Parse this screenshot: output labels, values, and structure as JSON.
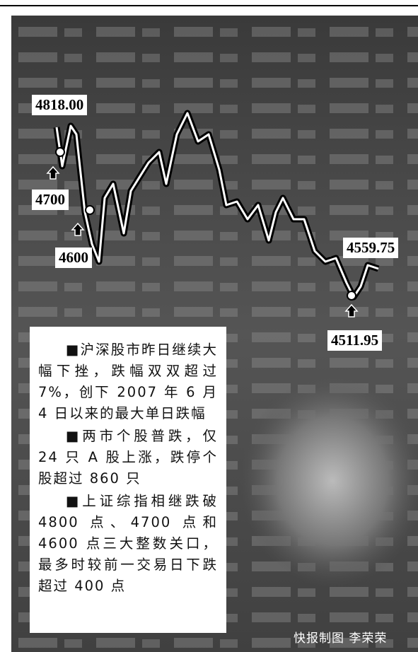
{
  "labels": [
    "4818.00",
    "4700",
    "4600",
    "4559.75",
    "4511.95"
  ],
  "paragraphs": [
    "■沪深股市昨日继续大幅下挫，跌幅双双超过 7%，创下 2007 年 6 月 4 日以来的最大单日跌幅",
    "■两市个股普跌，仅 24 只 A 股上涨，跌停个股超过 860 只",
    "■上证综指相继跌破 4800 点、4700 点和 4600 点三大整数关口，最多时较前一交易日下跌超过 400 点"
  ],
  "credit": "快报制图 李荣荣"
}
